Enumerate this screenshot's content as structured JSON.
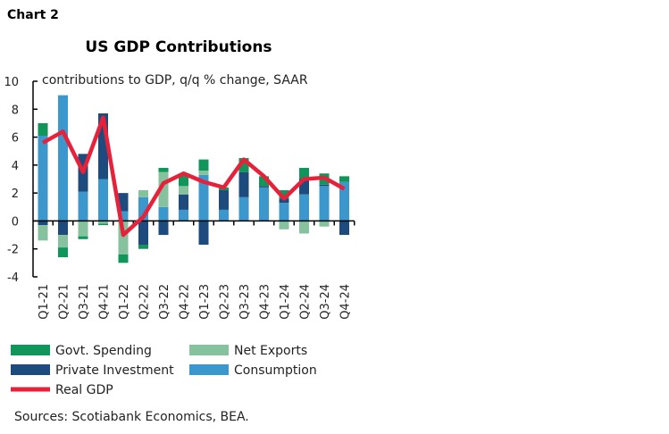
{
  "chart_label": "Chart 2",
  "sources": "Sources: Scotiabank Economics, BEA.",
  "chart_data": {
    "type": "bar",
    "stacked": true,
    "title": "US GDP Contributions",
    "subtitle": "contributions to GDP, q/q % change, SAAR",
    "ylim": [
      -4,
      10
    ],
    "yticks": [
      -4,
      -2,
      0,
      2,
      4,
      6,
      8,
      10
    ],
    "grid": false,
    "legend_position": "bottom",
    "categories": [
      "Q1-21",
      "Q2-21",
      "Q3-21",
      "Q4-21",
      "Q1-22",
      "Q2-22",
      "Q3-22",
      "Q4-22",
      "Q1-23",
      "Q2-23",
      "Q3-23",
      "Q4-23",
      "Q1-24",
      "Q2-24",
      "Q3-24",
      "Q4-24"
    ],
    "series": [
      {
        "name": "Consumption",
        "kind": "bar",
        "color": "#3c97cc",
        "values": [
          6.1,
          9.0,
          2.1,
          3.0,
          0.7,
          1.7,
          1.0,
          0.8,
          3.3,
          0.8,
          1.7,
          2.4,
          1.3,
          1.9,
          2.5,
          2.8
        ]
      },
      {
        "name": "Private Investment",
        "kind": "bar",
        "color": "#1e4b7d",
        "values": [
          -0.3,
          -1.0,
          2.7,
          4.7,
          1.3,
          -1.7,
          -1.0,
          1.1,
          -1.7,
          1.4,
          1.8,
          0.1,
          0.3,
          1.1,
          0.1,
          -1.0
        ]
      },
      {
        "name": "Net Exports",
        "kind": "bar",
        "color": "#86c29e",
        "values": [
          -1.1,
          -0.9,
          -1.1,
          -0.2,
          -2.4,
          0.5,
          2.5,
          0.6,
          0.3,
          0.0,
          0.0,
          0.0,
          -0.6,
          -0.9,
          -0.4,
          0.0
        ]
      },
      {
        "name": "Govt. Spending",
        "kind": "bar",
        "color": "#10955a",
        "values": [
          0.9,
          -0.7,
          -0.2,
          -0.1,
          -0.6,
          -0.3,
          0.3,
          0.8,
          0.8,
          0.2,
          1.0,
          0.7,
          0.6,
          0.8,
          0.8,
          0.4
        ]
      },
      {
        "name": "Real GDP",
        "kind": "line",
        "color": "#e8213a",
        "values": [
          5.6,
          6.4,
          3.5,
          7.4,
          -1.0,
          0.3,
          2.7,
          3.4,
          2.8,
          2.4,
          4.4,
          3.2,
          1.6,
          3.0,
          3.1,
          2.3
        ]
      }
    ],
    "legend_order": [
      "Govt. Spending",
      "Net Exports",
      "Private Investment",
      "Consumption",
      "Real GDP"
    ]
  }
}
